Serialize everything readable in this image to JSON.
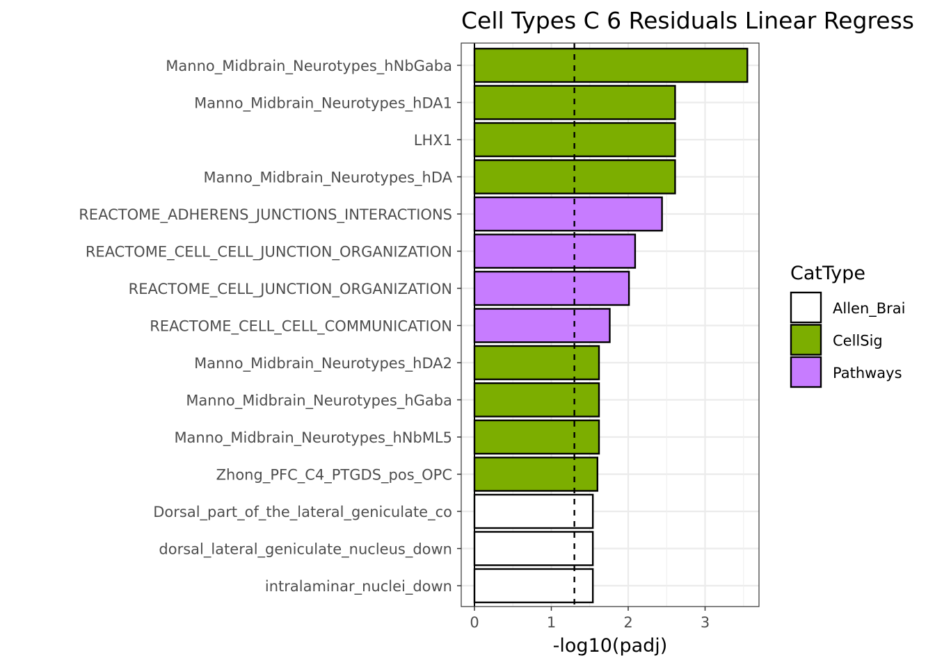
{
  "chart_data": {
    "type": "bar",
    "orientation": "horizontal",
    "title": "Cell Types C 6 Residuals Linear Regress",
    "xlabel": "-log10(padj)",
    "ylabel": "",
    "xlim": [
      -0.17,
      3.72
    ],
    "xticks": [
      "0",
      "1",
      "2",
      "3"
    ],
    "grid": true,
    "threshold_line": 1.3,
    "categories": [
      "Manno_Midbrain_Neurotypes_hNbGaba",
      "Manno_Midbrain_Neurotypes_hDA1",
      "LHX1",
      "Manno_Midbrain_Neurotypes_hDA",
      "REACTOME_ADHERENS_JUNCTIONS_INTERACTIONS",
      "REACTOME_CELL_CELL_JUNCTION_ORGANIZATION",
      "REACTOME_CELL_JUNCTION_ORGANIZATION",
      "REACTOME_CELL_CELL_COMMUNICATION",
      "Manno_Midbrain_Neurotypes_hDA2",
      "Manno_Midbrain_Neurotypes_hGaba",
      "Manno_Midbrain_Neurotypes_hNbML5",
      "Zhong_PFC_C4_PTGDS_pos_OPC",
      "Dorsal_part_of_the_lateral_geniculate_co",
      "dorsal_lateral_geniculate_nucleus_down",
      "intralaminar_nuclei_down"
    ],
    "values": [
      3.55,
      2.61,
      2.61,
      2.61,
      2.44,
      2.09,
      2.01,
      1.76,
      1.62,
      1.62,
      1.62,
      1.6,
      1.54,
      1.54,
      1.54
    ],
    "groups": [
      "CellSig",
      "CellSig",
      "CellSig",
      "CellSig",
      "Pathways",
      "Pathways",
      "Pathways",
      "Pathways",
      "CellSig",
      "CellSig",
      "CellSig",
      "CellSig",
      "Allen_Brai",
      "Allen_Brai",
      "Allen_Brai"
    ],
    "legend": {
      "title": "CatType",
      "position": "right",
      "entries": [
        {
          "name": "Allen_Brai",
          "color": "#ffffff"
        },
        {
          "name": "CellSig",
          "color": "#7cae00"
        },
        {
          "name": "Pathways",
          "color": "#c77cff"
        }
      ]
    }
  }
}
